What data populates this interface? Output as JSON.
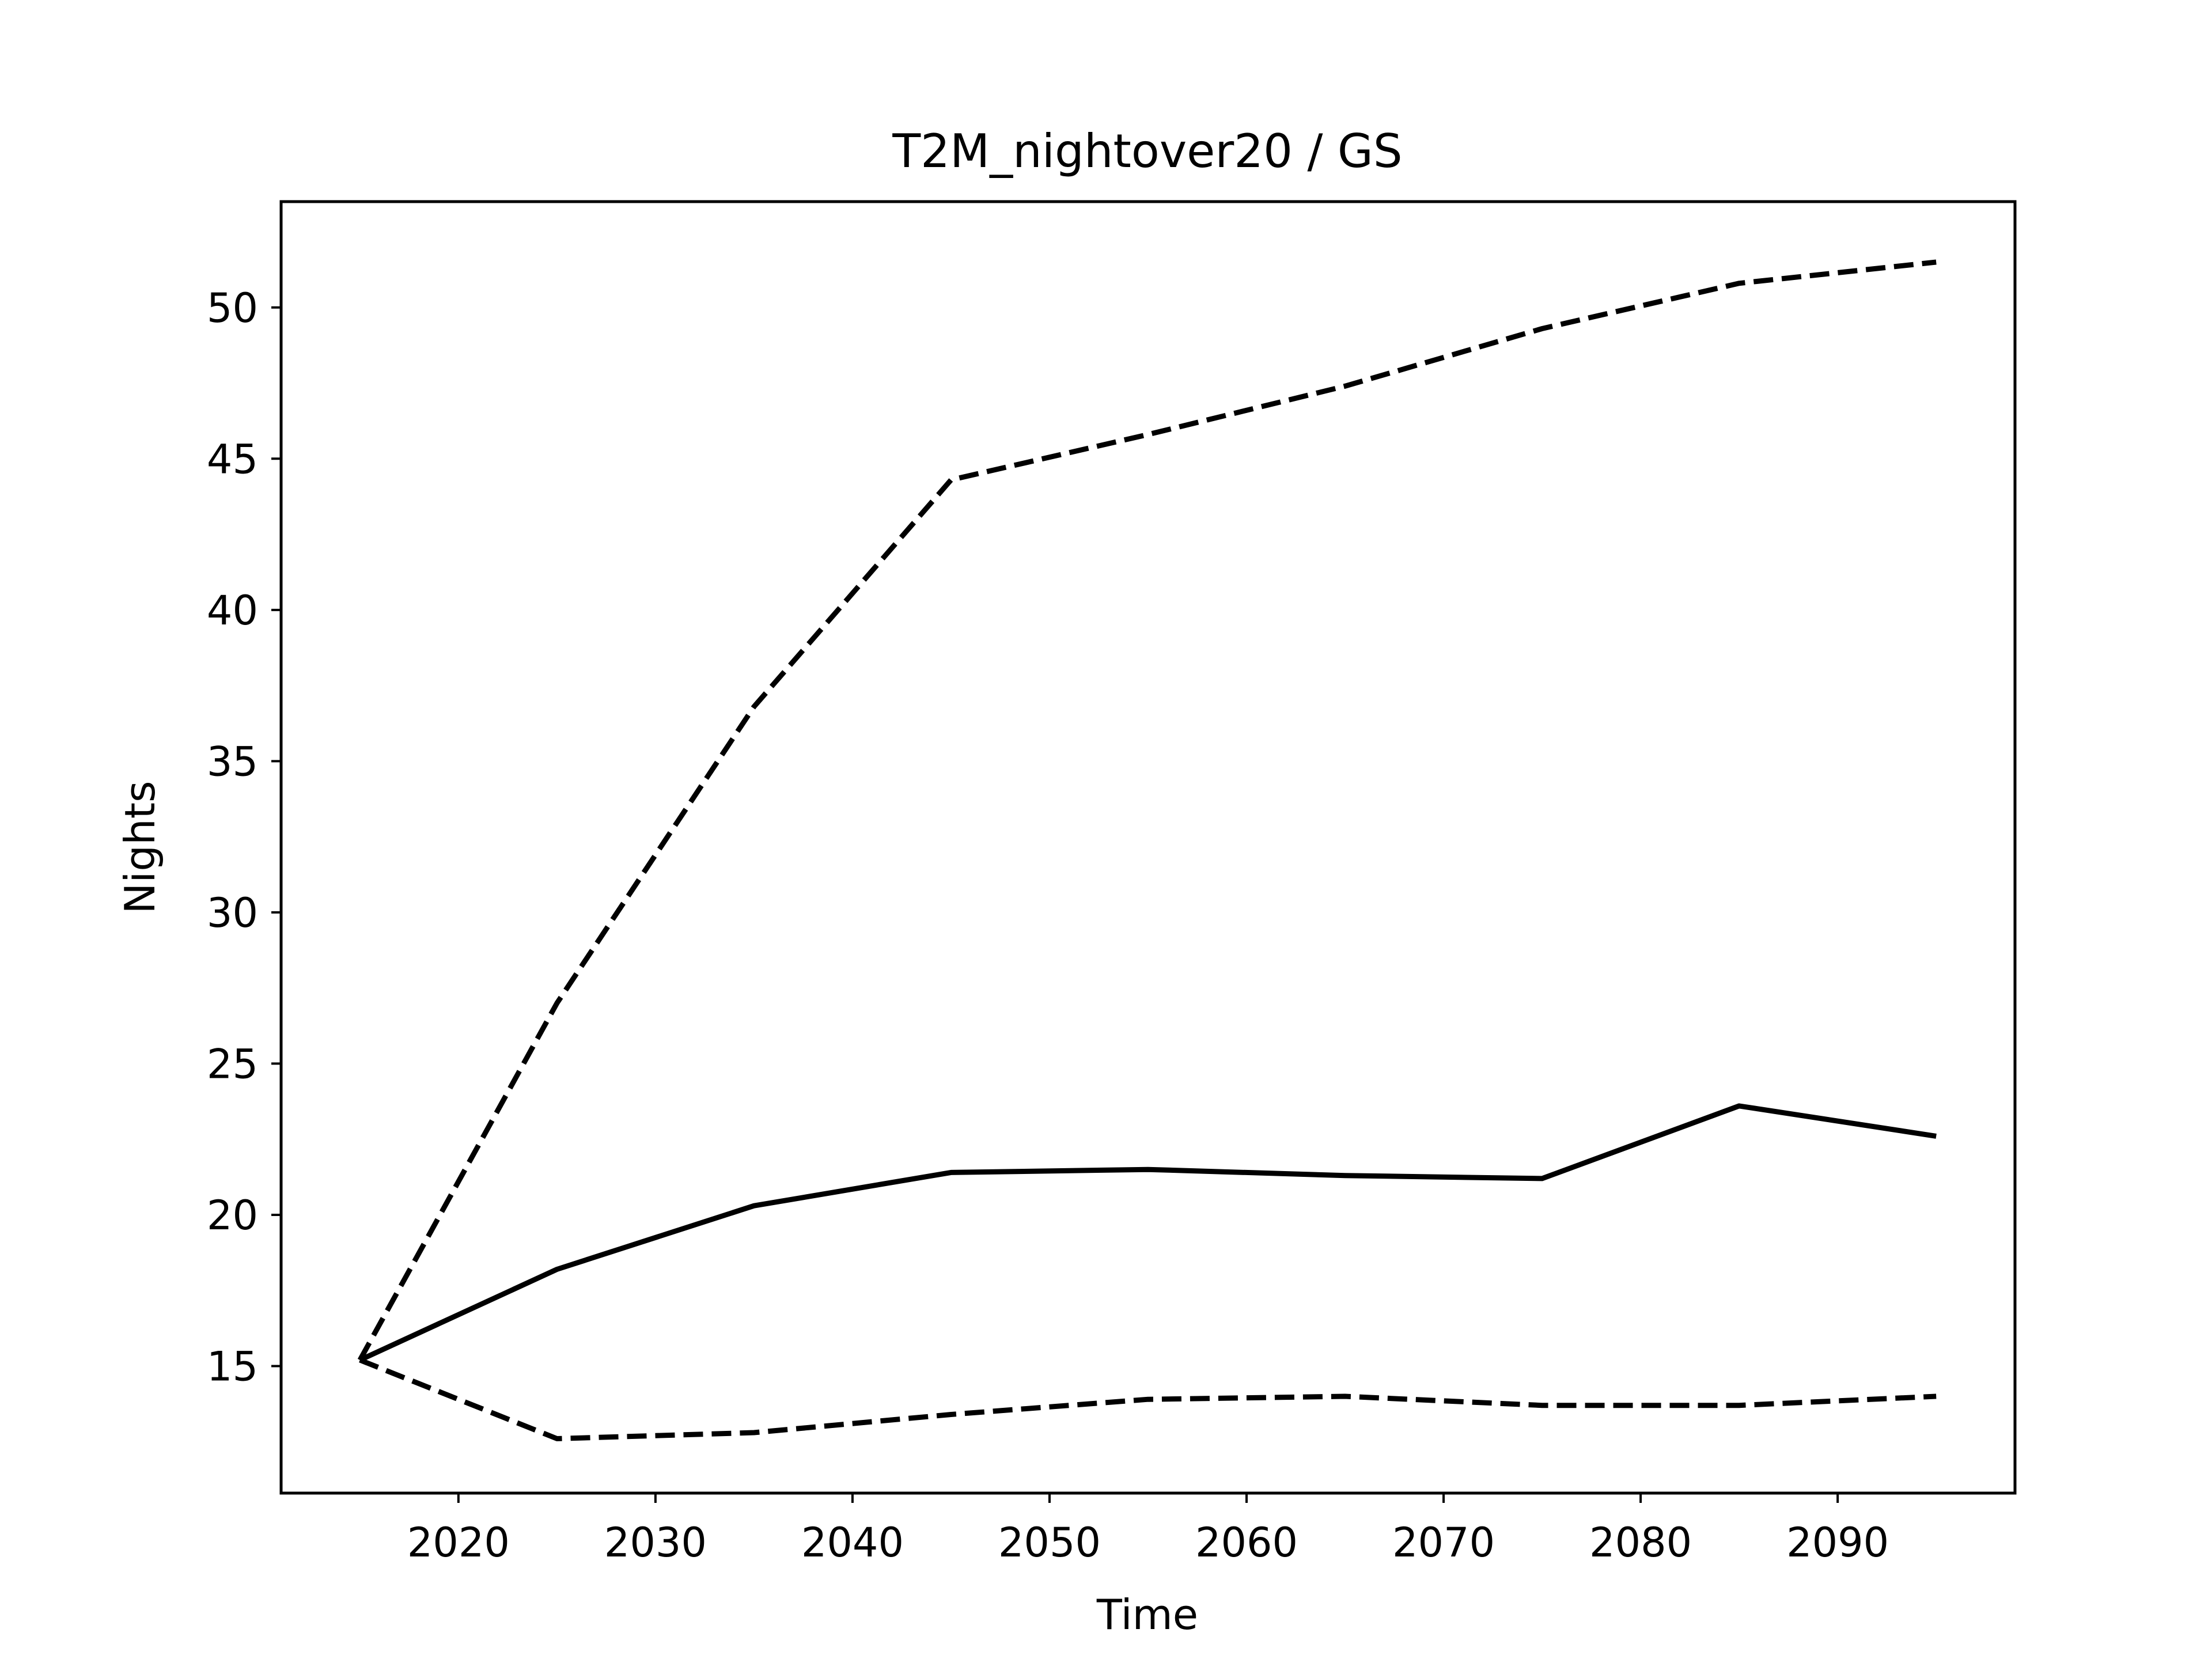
{
  "chart_data": {
    "type": "line",
    "title": "T2M_nightover20 / GS",
    "xlabel": "Time",
    "ylabel": "Nights",
    "xlim": [
      2011,
      2099
    ],
    "ylim": [
      10.8,
      53.5
    ],
    "xticks": [
      2020,
      2030,
      2040,
      2050,
      2060,
      2070,
      2080,
      2090
    ],
    "yticks": [
      15,
      20,
      25,
      30,
      35,
      40,
      45,
      50
    ],
    "grid": false,
    "legend": "none",
    "line_color": "#000000",
    "series": [
      {
        "style": "solid",
        "x": [
          2015,
          2025,
          2035,
          2045,
          2055,
          2065,
          2075,
          2085,
          2095
        ],
        "y": [
          15.2,
          18.2,
          20.3,
          21.4,
          21.5,
          21.3,
          21.2,
          23.6,
          22.6
        ]
      },
      {
        "style": "dashed",
        "x": [
          2015,
          2025,
          2035,
          2045,
          2055,
          2065,
          2075,
          2085,
          2095
        ],
        "y": [
          15.2,
          27.0,
          36.8,
          44.3,
          45.8,
          47.4,
          49.3,
          50.8,
          51.5
        ]
      },
      {
        "style": "dashed",
        "x": [
          2015,
          2025,
          2035,
          2045,
          2055,
          2065,
          2075,
          2085,
          2095
        ],
        "y": [
          15.2,
          12.6,
          12.8,
          13.4,
          13.9,
          14.0,
          13.7,
          13.7,
          14.0
        ]
      }
    ]
  }
}
